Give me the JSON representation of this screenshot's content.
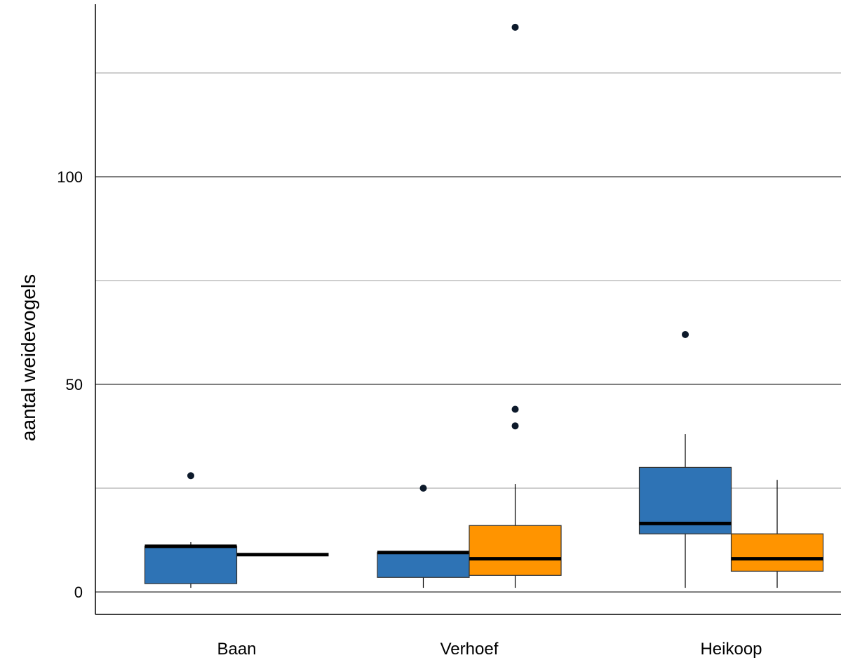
{
  "chart_data": {
    "type": "boxplot",
    "ylabel": "aantal weidevogels",
    "xlabel": "",
    "title": "",
    "ylim": [
      -5,
      141
    ],
    "yticks": [
      0,
      50,
      100
    ],
    "gridlines": [
      0,
      25,
      50,
      75,
      100,
      125
    ],
    "grid": true,
    "legend": "none",
    "categories": [
      "Baan",
      "Verhoef",
      "Heikoop"
    ],
    "series": [
      {
        "color": "#2e73b5",
        "boxes": [
          {
            "category": "Baan",
            "whisker_low": 1,
            "q1": 2,
            "median": 11,
            "q3": 11,
            "whisker_high": 12,
            "outliers": [
              28
            ]
          },
          {
            "category": "Verhoef",
            "whisker_low": 1,
            "q1": 3.5,
            "median": 9.5,
            "q3": 9.5,
            "whisker_high": 9.5,
            "outliers": [
              25
            ]
          },
          {
            "category": "Heikoop",
            "whisker_low": 1,
            "q1": 14,
            "median": 16.5,
            "q3": 30,
            "whisker_high": 38,
            "outliers": [
              62
            ]
          }
        ]
      },
      {
        "color": "#ff9400",
        "boxes": [
          {
            "category": "Baan",
            "whisker_low": 9,
            "q1": 9,
            "median": 9,
            "q3": 9,
            "whisker_high": 9,
            "outliers": []
          },
          {
            "category": "Verhoef",
            "whisker_low": 1,
            "q1": 4,
            "median": 8,
            "q3": 16,
            "whisker_high": 26,
            "outliers": [
              40,
              44,
              136
            ]
          },
          {
            "category": "Heikoop",
            "whisker_low": 1,
            "q1": 5,
            "median": 8,
            "q3": 14,
            "whisker_high": 27,
            "outliers": []
          }
        ]
      }
    ]
  }
}
